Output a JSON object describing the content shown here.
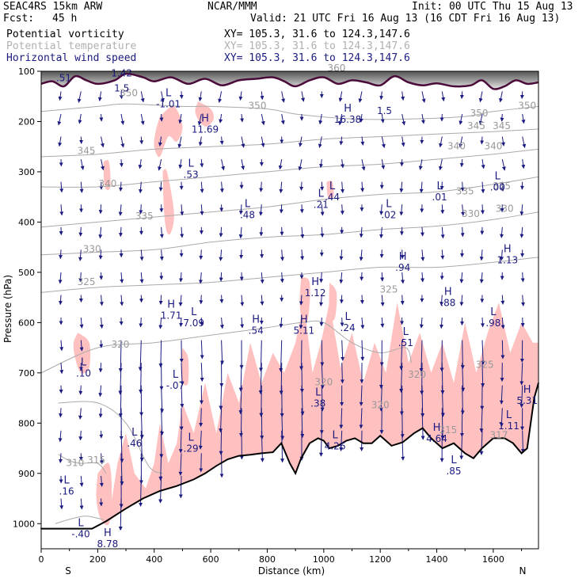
{
  "header": {
    "model": "SEAC4RS 15km ARW",
    "org": "NCAR/MMM",
    "init": "Init: 00 UTC Thu 15 Aug 13",
    "fcst_label": "Fcst:",
    "fcst_value": "45 h",
    "valid": "Valid: 21 UTC Fri 16 Aug 13 (16 CDT Fri 16 Aug 13)",
    "fields": [
      {
        "name": "Potential vorticity",
        "xy": "XY= 105.3, 31.6 to 124.3,147.6",
        "color": "#000000"
      },
      {
        "name": "Potential temperature",
        "xy": "XY= 105.3, 31.6 to 124.3,147.6",
        "color": "#b0b0b0"
      },
      {
        "name": "Horizontal wind speed",
        "xy": "XY= 105.3, 31.6 to 124.3,147.6",
        "color": "#1a1a80"
      }
    ]
  },
  "chart_data": {
    "type": "cross-section",
    "xlabel": "Distance (km)",
    "ylabel": "Pressure (hPa)",
    "xlim": [
      0,
      1760
    ],
    "ylim": [
      1050,
      100
    ],
    "x_ticks": [
      0,
      200,
      400,
      600,
      800,
      1000,
      1200,
      1400,
      1600
    ],
    "y_ticks": [
      100,
      200,
      300,
      400,
      500,
      600,
      700,
      800,
      900,
      1000
    ],
    "left_end_label": "S",
    "right_end_label": "N",
    "colors": {
      "pv_fill": "#ffc0c0",
      "theta": "#aaaaaa",
      "wind": "#1a1a80",
      "pv_contour": "#4a0a3a",
      "terrain": "#000000"
    },
    "terrain": [
      [
        0,
        1010
      ],
      [
        100,
        1010
      ],
      [
        180,
        1010
      ],
      [
        230,
        995
      ],
      [
        300,
        970
      ],
      [
        360,
        950
      ],
      [
        420,
        935
      ],
      [
        480,
        925
      ],
      [
        540,
        912
      ],
      [
        580,
        900
      ],
      [
        620,
        885
      ],
      [
        660,
        872
      ],
      [
        700,
        865
      ],
      [
        740,
        863
      ],
      [
        780,
        860
      ],
      [
        820,
        858
      ],
      [
        850,
        840
      ],
      [
        880,
        880
      ],
      [
        900,
        900
      ],
      [
        920,
        870
      ],
      [
        950,
        840
      ],
      [
        980,
        830
      ],
      [
        1000,
        835
      ],
      [
        1020,
        850
      ],
      [
        1050,
        845
      ],
      [
        1080,
        835
      ],
      [
        1110,
        830
      ],
      [
        1140,
        840
      ],
      [
        1170,
        840
      ],
      [
        1200,
        825
      ],
      [
        1240,
        845
      ],
      [
        1280,
        838
      ],
      [
        1320,
        820
      ],
      [
        1350,
        810
      ],
      [
        1380,
        830
      ],
      [
        1420,
        850
      ],
      [
        1460,
        840
      ],
      [
        1500,
        860
      ],
      [
        1530,
        870
      ],
      [
        1560,
        850
      ],
      [
        1600,
        830
      ],
      [
        1640,
        830
      ],
      [
        1670,
        840
      ],
      [
        1700,
        860
      ],
      [
        1720,
        850
      ],
      [
        1745,
        750
      ],
      [
        1760,
        720
      ]
    ],
    "theta_contours": [
      {
        "level": 305,
        "points": [
          [
            50,
            1000
          ],
          [
            110,
            990
          ],
          [
            160,
            985
          ],
          [
            220,
            992
          ]
        ]
      },
      {
        "level": 310,
        "points": [
          [
            60,
            862
          ],
          [
            100,
            875
          ],
          [
            140,
            880
          ],
          [
            200,
            880
          ],
          [
            230,
            900
          ]
        ]
      },
      {
        "level": 315,
        "points": [
          [
            60,
            760
          ],
          [
            200,
            760
          ],
          [
            300,
            800
          ],
          [
            380,
            885
          ],
          [
            430,
            900
          ]
        ]
      },
      {
        "level": 320,
        "points": [
          [
            0,
            700
          ],
          [
            200,
            650
          ],
          [
            400,
            640
          ],
          [
            600,
            625
          ],
          [
            800,
            610
          ],
          [
            920,
            600
          ],
          [
            1000,
            600
          ],
          [
            1100,
            640
          ],
          [
            1200,
            660
          ],
          [
            1290,
            650
          ],
          [
            1310,
            680
          ]
        ]
      },
      {
        "level": 325,
        "points": [
          [
            0,
            540
          ],
          [
            200,
            530
          ],
          [
            400,
            525
          ],
          [
            600,
            520
          ],
          [
            800,
            510
          ],
          [
            1000,
            500
          ],
          [
            1200,
            490
          ],
          [
            1400,
            490
          ],
          [
            1600,
            480
          ],
          [
            1760,
            470
          ]
        ]
      },
      {
        "level": 330,
        "points": [
          [
            0,
            465
          ],
          [
            200,
            460
          ],
          [
            400,
            455
          ],
          [
            600,
            440
          ],
          [
            800,
            430
          ],
          [
            1000,
            425
          ],
          [
            1200,
            415
          ],
          [
            1400,
            408
          ],
          [
            1600,
            395
          ],
          [
            1760,
            380
          ]
        ]
      },
      {
        "level": 335,
        "points": [
          [
            0,
            410
          ],
          [
            200,
            400
          ],
          [
            400,
            390
          ],
          [
            600,
            380
          ],
          [
            800,
            370
          ],
          [
            1000,
            355
          ],
          [
            1200,
            345
          ],
          [
            1400,
            340
          ],
          [
            1600,
            325
          ],
          [
            1760,
            310
          ]
        ]
      },
      {
        "level": 340,
        "points": [
          [
            0,
            330
          ],
          [
            200,
            330
          ],
          [
            400,
            320
          ],
          [
            600,
            310
          ],
          [
            800,
            300
          ],
          [
            1000,
            290
          ],
          [
            1200,
            285
          ],
          [
            1400,
            275
          ],
          [
            1600,
            265
          ],
          [
            1760,
            255
          ]
        ]
      },
      {
        "level": 345,
        "points": [
          [
            0,
            270
          ],
          [
            200,
            265
          ],
          [
            400,
            255
          ],
          [
            600,
            250
          ],
          [
            800,
            245
          ],
          [
            1000,
            235
          ],
          [
            1200,
            230
          ],
          [
            1400,
            225
          ],
          [
            1600,
            220
          ],
          [
            1760,
            215
          ]
        ]
      },
      {
        "level": 350,
        "points": [
          [
            0,
            180
          ],
          [
            200,
            170
          ],
          [
            300,
            165
          ],
          [
            500,
            170
          ],
          [
            600,
            170
          ],
          [
            800,
            175
          ],
          [
            900,
            185
          ],
          [
            1100,
            195
          ],
          [
            1300,
            195
          ],
          [
            1500,
            190
          ],
          [
            1600,
            180
          ],
          [
            1760,
            170
          ]
        ]
      }
    ],
    "contour_labels": [
      {
        "x": 120,
        "p": 885,
        "text": "310"
      },
      {
        "x": 195,
        "p": 880,
        "text": "315"
      },
      {
        "x": 1000,
        "p": 725,
        "text": "320"
      },
      {
        "x": 1440,
        "p": 820,
        "text": "315"
      },
      {
        "x": 1200,
        "p": 770,
        "text": "320"
      },
      {
        "x": 1620,
        "p": 830,
        "text": "317"
      },
      {
        "x": 1330,
        "p": 710,
        "text": "320"
      },
      {
        "x": 1570,
        "p": 690,
        "text": "325"
      },
      {
        "x": 1230,
        "p": 540,
        "text": "325"
      },
      {
        "x": 280,
        "p": 650,
        "text": "320"
      },
      {
        "x": 160,
        "p": 525,
        "text": "325"
      },
      {
        "x": 180,
        "p": 460,
        "text": "330"
      },
      {
        "x": 1520,
        "p": 390,
        "text": "330"
      },
      {
        "x": 1640,
        "p": 380,
        "text": "330"
      },
      {
        "x": 365,
        "p": 395,
        "text": "335"
      },
      {
        "x": 1500,
        "p": 345,
        "text": "335"
      },
      {
        "x": 1630,
        "p": 335,
        "text": "335"
      },
      {
        "x": 235,
        "p": 330,
        "text": "340"
      },
      {
        "x": 1470,
        "p": 255,
        "text": "340"
      },
      {
        "x": 1600,
        "p": 255,
        "text": "340"
      },
      {
        "x": 160,
        "p": 265,
        "text": "345"
      },
      {
        "x": 1540,
        "p": 215,
        "text": "345"
      },
      {
        "x": 1630,
        "p": 215,
        "text": "345"
      },
      {
        "x": 310,
        "p": 150,
        "text": "350"
      },
      {
        "x": 765,
        "p": 175,
        "text": "350"
      },
      {
        "x": 1550,
        "p": 190,
        "text": "350"
      },
      {
        "x": 1720,
        "p": 175,
        "text": "350"
      },
      {
        "x": 1045,
        "p": 100,
        "text": "360"
      }
    ],
    "pv_labels": [
      {
        "x": 80,
        "p": 120,
        "text": ".51"
      },
      {
        "x": 285,
        "p": 110,
        "text": "1.42"
      },
      {
        "x": 285,
        "p": 140,
        "text": "1.5"
      },
      {
        "x": 1215,
        "p": 185,
        "text": "1.5"
      }
    ],
    "extrema": [
      {
        "type": "H",
        "x": 580,
        "p": 200,
        "value": "11.69"
      },
      {
        "type": "L",
        "x": 450,
        "p": 150,
        "value": "-1.01"
      },
      {
        "type": "H",
        "x": 1085,
        "p": 180,
        "value": "16.38"
      },
      {
        "type": "L",
        "x": 530,
        "p": 290,
        "value": ".53"
      },
      {
        "type": "L",
        "x": 730,
        "p": 370,
        "value": ".48"
      },
      {
        "type": "L",
        "x": 990,
        "p": 350,
        "value": ".21"
      },
      {
        "type": "L",
        "x": 1030,
        "p": 335,
        "value": ".44"
      },
      {
        "type": "L",
        "x": 1230,
        "p": 370,
        "value": ".02"
      },
      {
        "type": "L",
        "x": 1410,
        "p": 335,
        "value": ".01"
      },
      {
        "type": "L",
        "x": 1615,
        "p": 315,
        "value": ".00"
      },
      {
        "type": "H",
        "x": 1650,
        "p": 460,
        "value": "1.13"
      },
      {
        "type": "H",
        "x": 1280,
        "p": 475,
        "value": ".94"
      },
      {
        "type": "H",
        "x": 970,
        "p": 525,
        "value": "1.12"
      },
      {
        "type": "H",
        "x": 1440,
        "p": 545,
        "value": ".88"
      },
      {
        "type": "H",
        "x": 460,
        "p": 570,
        "value": "1.71"
      },
      {
        "type": "L",
        "x": 540,
        "p": 585,
        "value": "7.09"
      },
      {
        "type": "L",
        "x": 1600,
        "p": 585,
        "value": ".98"
      },
      {
        "type": "H",
        "x": 760,
        "p": 600,
        "value": ".54"
      },
      {
        "type": "H",
        "x": 930,
        "p": 600,
        "value": "5.11"
      },
      {
        "type": "L",
        "x": 1085,
        "p": 595,
        "value": ".24"
      },
      {
        "type": "L",
        "x": 1290,
        "p": 625,
        "value": ".51"
      },
      {
        "type": "L",
        "x": 150,
        "p": 685,
        "value": ".10"
      },
      {
        "type": "L",
        "x": 475,
        "p": 710,
        "value": "-.07"
      },
      {
        "type": "L",
        "x": 980,
        "p": 745,
        "value": ".38"
      },
      {
        "type": "H",
        "x": 1720,
        "p": 740,
        "value": "5.31"
      },
      {
        "type": "L",
        "x": 1655,
        "p": 790,
        "value": "1.11"
      },
      {
        "type": "L",
        "x": 330,
        "p": 825,
        "value": ".46"
      },
      {
        "type": "L",
        "x": 530,
        "p": 835,
        "value": ".29"
      },
      {
        "type": "H",
        "x": 1400,
        "p": 815,
        "value": "4.64"
      },
      {
        "type": "L",
        "x": 1040,
        "p": 830,
        "value": "4.26"
      },
      {
        "type": "L",
        "x": 90,
        "p": 920,
        "value": ".16"
      },
      {
        "type": "L",
        "x": 140,
        "p": 1005,
        "value": "-.40"
      },
      {
        "type": "H",
        "x": 235,
        "p": 1025,
        "value": "8.78"
      },
      {
        "type": "L",
        "x": 1460,
        "p": 880,
        "value": ".85"
      }
    ]
  }
}
